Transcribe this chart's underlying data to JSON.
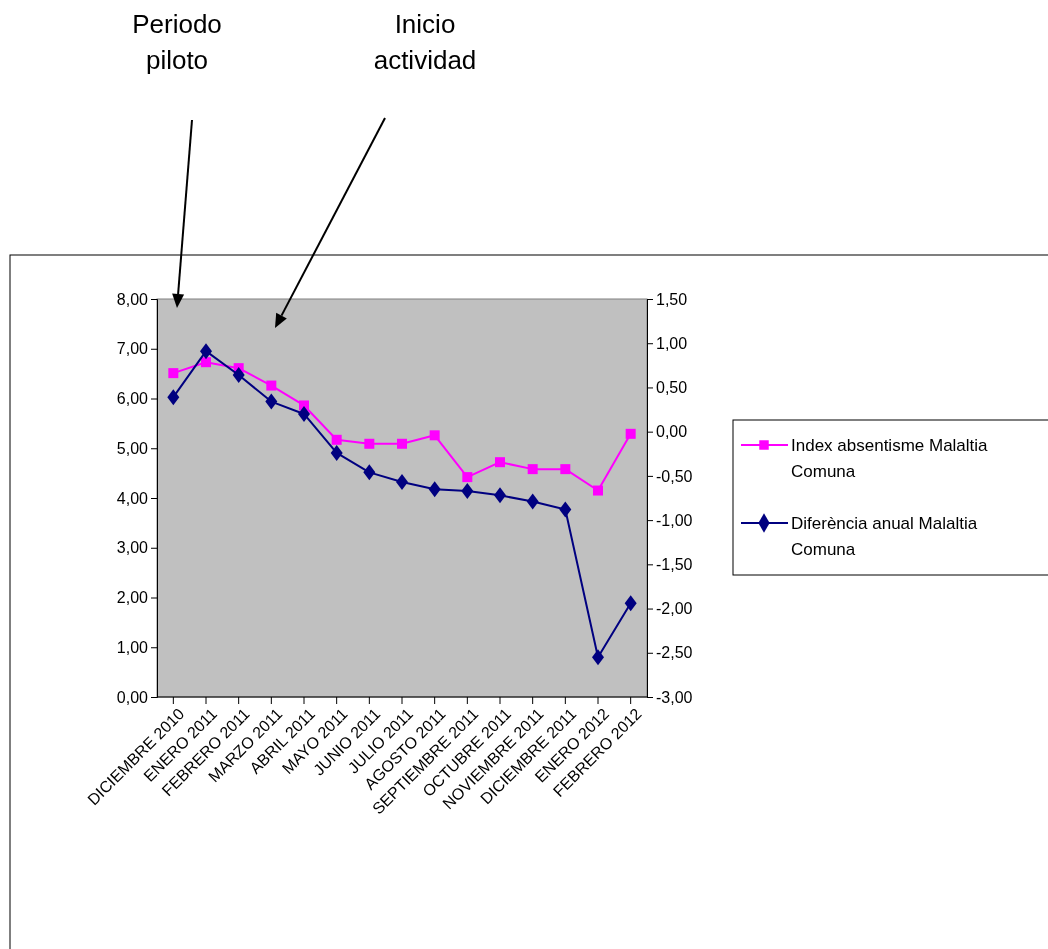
{
  "chart_data": {
    "type": "line",
    "categories": [
      "DICIEMBRE 2010",
      "ENERO 2011",
      "FEBRERO 2011",
      "MARZO 2011",
      "ABRIL 2011",
      "MAYO 2011",
      "JUNIO 2011",
      "JULIO 2011",
      "AGOSTO 2011",
      "SEPTIEMBRE 2011",
      "OCTUBRE 2011",
      "NOVIEMBRE 2011",
      "DICIEMBRE 2011",
      "ENERO 2012",
      "FEBRERO 2012"
    ],
    "series": [
      {
        "name": "Index absentisme Malaltia Comuna",
        "color": "#ff00ff",
        "marker": "square",
        "values": [
          6.51,
          6.73,
          6.61,
          6.26,
          5.86,
          5.17,
          5.09,
          5.09,
          5.26,
          4.42,
          4.72,
          4.58,
          4.58,
          4.15,
          5.29
        ]
      },
      {
        "name": "Diferència anual Malaltia Comuna",
        "color": "#000080",
        "marker": "diamond",
        "axis": "y2",
        "values": [
          0.39,
          0.91,
          0.64,
          0.34,
          0.2,
          -0.24,
          -0.46,
          -0.57,
          -0.65,
          -0.67,
          -0.72,
          -0.79,
          -0.88,
          -2.55,
          -1.94
        ]
      }
    ],
    "ylim": [
      0,
      8
    ],
    "yticks": [
      {
        "value": 0,
        "label": "0,00"
      },
      {
        "value": 1,
        "label": "1,00"
      },
      {
        "value": 2,
        "label": "2,00"
      },
      {
        "value": 3,
        "label": "3,00"
      },
      {
        "value": 4,
        "label": "4,00"
      },
      {
        "value": 5,
        "label": "5,00"
      },
      {
        "value": 6,
        "label": "6,00"
      },
      {
        "value": 7,
        "label": "7,00"
      },
      {
        "value": 8,
        "label": "8,00"
      }
    ],
    "y2lim": [
      -3,
      1.5
    ],
    "y2ticks": [
      {
        "value": -3,
        "label": "-3,00"
      },
      {
        "value": -2.5,
        "label": "-2,50"
      },
      {
        "value": -2,
        "label": "-2,00"
      },
      {
        "value": -1.5,
        "label": "-1,50"
      },
      {
        "value": -1,
        "label": "-1,00"
      },
      {
        "value": -0.5,
        "label": "-0,50"
      },
      {
        "value": 0,
        "label": "0,00"
      },
      {
        "value": 0.5,
        "label": "0,50"
      },
      {
        "value": 1,
        "label": "1,00"
      },
      {
        "value": 1.5,
        "label": "1,50"
      }
    ],
    "annotations": [
      "Periodo piloto",
      "Inicio actividad"
    ],
    "legend": "right",
    "grid": false
  }
}
